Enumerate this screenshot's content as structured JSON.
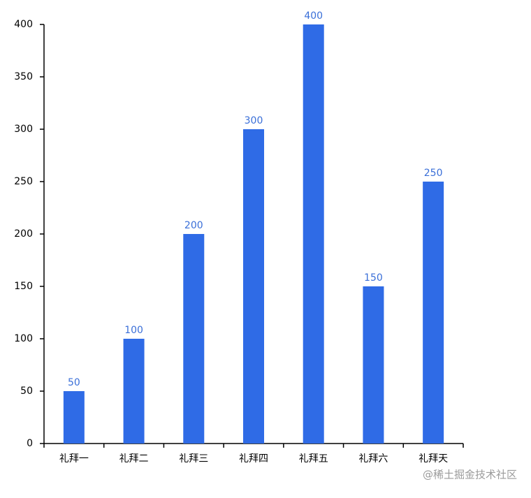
{
  "chart_data": {
    "type": "bar",
    "categories": [
      "礼拜一",
      "礼拜二",
      "礼拜三",
      "礼拜四",
      "礼拜五",
      "礼拜六",
      "礼拜天"
    ],
    "values": [
      50,
      100,
      200,
      300,
      400,
      150,
      250
    ],
    "color": "#2f6be6",
    "value_label_color": "#3a6fd8",
    "ylim": [
      0,
      400
    ],
    "yticks": [
      0,
      50,
      100,
      150,
      200,
      250,
      300,
      350,
      400
    ],
    "watermark": "@稀土掘金技术社区"
  }
}
